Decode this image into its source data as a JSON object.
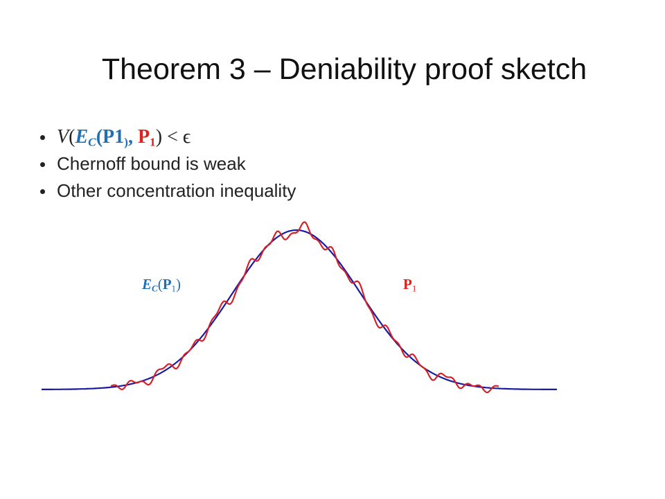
{
  "title": "Theorem 3 – Deniability proof sketch",
  "bullets": [
    {
      "parts": [
        "V",
        "(",
        "E",
        "C",
        "(P",
        "1",
        ")",
        ",",
        " ",
        "P",
        "1",
        ")",
        " < ϵ"
      ]
    },
    {
      "text": "Chernoff bound is weak"
    },
    {
      "text": "Other concentration inequality"
    }
  ],
  "labels": {
    "left": [
      "E",
      "C",
      "(",
      "P",
      "1",
      ")"
    ],
    "right": [
      "P",
      "1"
    ]
  }
}
